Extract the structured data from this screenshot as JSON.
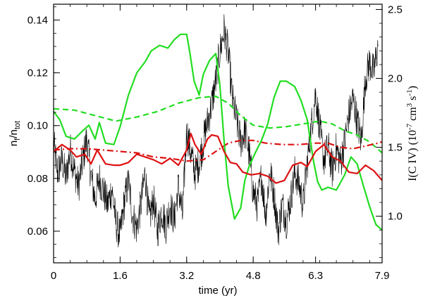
{
  "chart_data": {
    "type": "line",
    "xlabel": "time (yr)",
    "ylabel_left": {
      "main": "n",
      "sub1": "f",
      "mid": "/n",
      "sub2": "tot"
    },
    "ylabel_right": {
      "pre": "I(C IV) (10",
      "sup1": "-7",
      "mid": " cm",
      "sup2": "3",
      "mid2": " s",
      "sup3": "-1",
      "post": ")"
    },
    "xlim": [
      0,
      7.9
    ],
    "ylim_left": [
      0.048,
      0.146
    ],
    "ylim_right": [
      0.662,
      2.538
    ],
    "x_ticks": [
      {
        "value": 0,
        "label": "0"
      },
      {
        "value": 1.6,
        "label": "1.6"
      },
      {
        "value": 3.2,
        "label": "3.2"
      },
      {
        "value": 4.8,
        "label": "4.8"
      },
      {
        "value": 6.3,
        "label": "6.3"
      },
      {
        "value": 7.9,
        "label": "7.9"
      }
    ],
    "y_ticks_left": [
      {
        "value": 0.06,
        "label": "0.06"
      },
      {
        "value": 0.08,
        "label": "0.08"
      },
      {
        "value": 0.1,
        "label": "0.10"
      },
      {
        "value": 0.12,
        "label": "0.12"
      },
      {
        "value": 0.14,
        "label": "0.14"
      }
    ],
    "y_ticks_right": [
      {
        "value": 1.0,
        "label": "1.0"
      },
      {
        "value": 1.5,
        "label": "1.5"
      },
      {
        "value": 2.0,
        "label": "2.0"
      },
      {
        "value": 2.5,
        "label": "2.5"
      }
    ],
    "series": [
      {
        "axis": "right",
        "color": "#22dd22",
        "style": "solid",
        "x": [
          0,
          0.15,
          0.3,
          0.5,
          0.7,
          0.85,
          1.0,
          1.1,
          1.25,
          1.45,
          1.6,
          1.8,
          2.0,
          2.2,
          2.35,
          2.55,
          2.75,
          2.9,
          3.05,
          3.2,
          3.28,
          3.38,
          3.5,
          3.6,
          3.75,
          3.9,
          4.0,
          4.1,
          4.2,
          4.35,
          4.5,
          4.6,
          4.7,
          4.85,
          5.0,
          5.15,
          5.3,
          5.45,
          5.6,
          5.8,
          5.95,
          6.1,
          6.25,
          6.35,
          6.45,
          6.6,
          6.8,
          7.0,
          7.15,
          7.3,
          7.45,
          7.6,
          7.75,
          7.9
        ],
        "y": [
          1.76,
          1.7,
          1.58,
          1.56,
          1.62,
          1.66,
          1.56,
          1.68,
          1.53,
          1.52,
          1.65,
          1.88,
          2.04,
          2.12,
          2.2,
          2.24,
          2.22,
          2.28,
          2.32,
          2.32,
          2.18,
          1.98,
          1.88,
          2.03,
          2.13,
          2.18,
          1.95,
          1.55,
          1.22,
          0.98,
          1.06,
          1.26,
          1.36,
          1.46,
          1.55,
          1.67,
          1.86,
          1.98,
          1.98,
          1.94,
          1.84,
          1.7,
          1.4,
          1.25,
          1.19,
          1.21,
          1.19,
          1.3,
          1.43,
          1.38,
          1.22,
          1.07,
          0.94,
          0.9
        ]
      },
      {
        "axis": "right",
        "color": "#22dd22",
        "style": "dashed",
        "x": [
          0,
          0.5,
          1.0,
          1.5,
          2.0,
          2.5,
          3.0,
          3.5,
          3.9,
          4.2,
          4.5,
          4.8,
          5.2,
          5.6,
          6.0,
          6.4,
          6.7,
          7.0,
          7.3,
          7.6,
          7.9
        ],
        "y": [
          1.78,
          1.77,
          1.73,
          1.69,
          1.72,
          1.76,
          1.82,
          1.86,
          1.87,
          1.82,
          1.73,
          1.66,
          1.64,
          1.65,
          1.67,
          1.69,
          1.67,
          1.62,
          1.59,
          1.54,
          1.46
        ]
      },
      {
        "axis": "right",
        "color": "#dd1111",
        "style": "solid",
        "x": [
          0,
          0.2,
          0.4,
          0.55,
          0.75,
          0.9,
          1.05,
          1.25,
          1.45,
          1.6,
          1.8,
          2.0,
          2.2,
          2.4,
          2.6,
          2.8,
          3.0,
          3.2,
          3.3,
          3.4,
          3.55,
          3.7,
          3.8,
          3.95,
          4.1,
          4.25,
          4.4,
          4.55,
          4.75,
          4.95,
          5.15,
          5.35,
          5.55,
          5.75,
          5.95,
          6.1,
          6.3,
          6.5,
          6.7,
          6.9,
          7.1,
          7.3,
          7.5,
          7.7,
          7.9
        ],
        "y": [
          1.47,
          1.52,
          1.48,
          1.43,
          1.45,
          1.38,
          1.48,
          1.38,
          1.37,
          1.37,
          1.39,
          1.45,
          1.43,
          1.41,
          1.38,
          1.42,
          1.37,
          1.48,
          1.6,
          1.52,
          1.45,
          1.56,
          1.59,
          1.58,
          1.47,
          1.39,
          1.38,
          1.32,
          1.3,
          1.31,
          1.29,
          1.24,
          1.26,
          1.37,
          1.39,
          1.36,
          1.47,
          1.52,
          1.43,
          1.4,
          1.32,
          1.31,
          1.37,
          1.33,
          1.26
        ]
      },
      {
        "axis": "right",
        "color": "#dd1111",
        "style": "dashdot",
        "x": [
          0,
          0.4,
          0.8,
          1.2,
          1.6,
          2.0,
          2.4,
          2.8,
          3.2,
          3.6,
          3.9,
          4.2,
          4.5,
          4.8,
          5.1,
          5.5,
          5.9,
          6.3,
          6.6,
          6.9,
          7.2,
          7.5,
          7.8,
          7.9
        ],
        "y": [
          1.48,
          1.49,
          1.49,
          1.48,
          1.47,
          1.46,
          1.43,
          1.42,
          1.4,
          1.41,
          1.47,
          1.53,
          1.55,
          1.55,
          1.53,
          1.52,
          1.52,
          1.53,
          1.53,
          1.5,
          1.49,
          1.51,
          1.53,
          1.54
        ]
      },
      {
        "axis": "left",
        "color": "#000000",
        "style": "noisy",
        "x": [
          0,
          0.1,
          0.2,
          0.3,
          0.4,
          0.5,
          0.6,
          0.7,
          0.8,
          0.9,
          1.0,
          1.1,
          1.2,
          1.3,
          1.4,
          1.5,
          1.6,
          1.7,
          1.8,
          1.9,
          2.0,
          2.1,
          2.2,
          2.3,
          2.4,
          2.5,
          2.6,
          2.7,
          2.8,
          2.9,
          3.0,
          3.1,
          3.2,
          3.3,
          3.4,
          3.5,
          3.6,
          3.7,
          3.8,
          3.9,
          4.0,
          4.1,
          4.2,
          4.3,
          4.4,
          4.5,
          4.6,
          4.7,
          4.8,
          4.9,
          5.0,
          5.1,
          5.2,
          5.3,
          5.4,
          5.5,
          5.6,
          5.7,
          5.8,
          5.9,
          6.0,
          6.1,
          6.2,
          6.3,
          6.4,
          6.5,
          6.6,
          6.7,
          6.8,
          6.9,
          7.0,
          7.1,
          7.2,
          7.3,
          7.4,
          7.5,
          7.6,
          7.7,
          7.8
        ],
        "y": [
          0.093,
          0.082,
          0.087,
          0.08,
          0.091,
          0.083,
          0.077,
          0.087,
          0.095,
          0.081,
          0.072,
          0.08,
          0.075,
          0.07,
          0.076,
          0.063,
          0.058,
          0.071,
          0.079,
          0.066,
          0.061,
          0.07,
          0.082,
          0.064,
          0.072,
          0.06,
          0.068,
          0.062,
          0.07,
          0.064,
          0.077,
          0.066,
          0.098,
          0.09,
          0.082,
          0.086,
          0.094,
          0.101,
          0.108,
          0.117,
          0.128,
          0.136,
          0.128,
          0.11,
          0.102,
          0.094,
          0.098,
          0.09,
          0.075,
          0.07,
          0.081,
          0.066,
          0.083,
          0.074,
          0.06,
          0.07,
          0.064,
          0.072,
          0.082,
          0.078,
          0.07,
          0.086,
          0.1,
          0.112,
          0.099,
          0.087,
          0.092,
          0.083,
          0.091,
          0.086,
          0.094,
          0.104,
          0.11,
          0.102,
          0.094,
          0.118,
          0.124,
          0.12,
          0.13
        ]
      }
    ]
  }
}
